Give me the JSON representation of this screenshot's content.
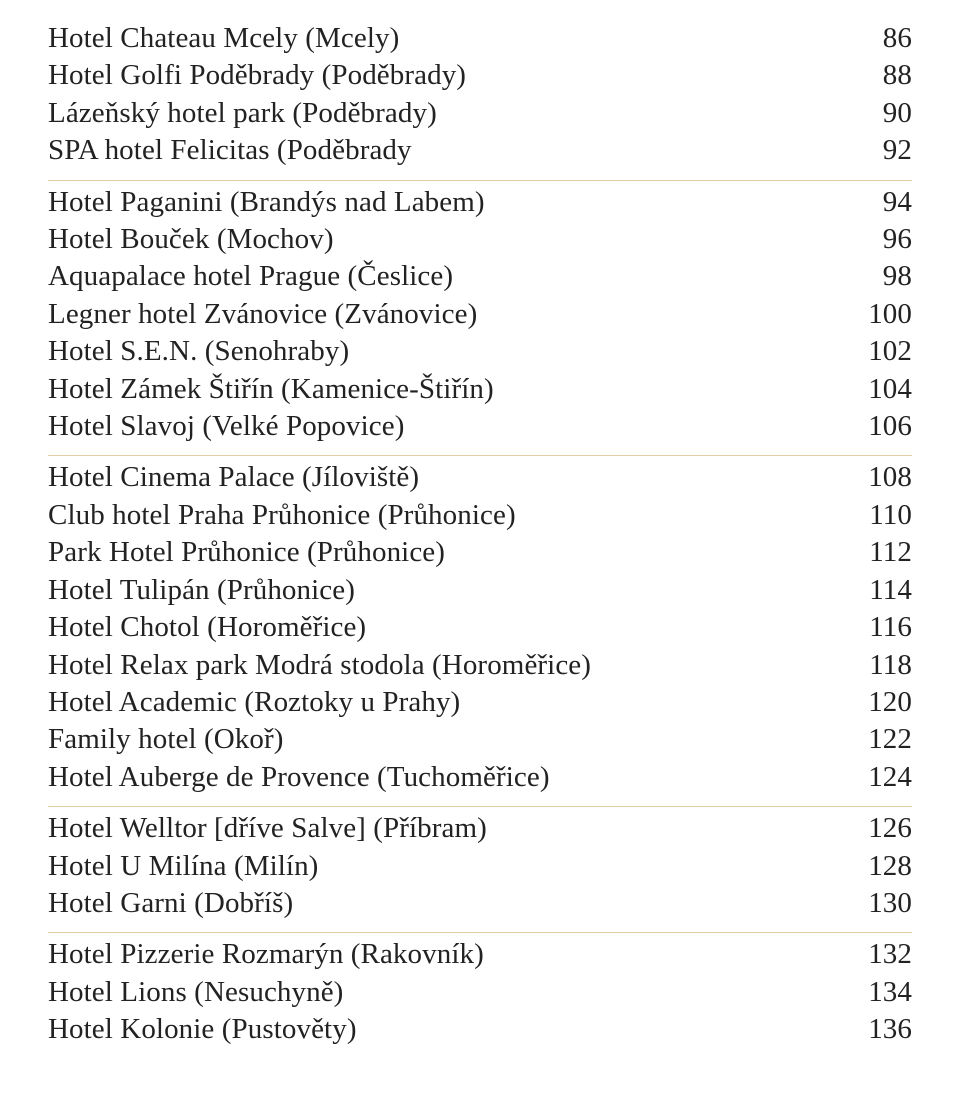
{
  "typography": {
    "font_family": "Palatino Linotype, Book Antiqua, Palatino, Georgia, serif",
    "font_size_pt": 22,
    "text_color": "#222222",
    "background_color": "#ffffff"
  },
  "divider_color": "#e2cfa3",
  "sections": [
    {
      "entries": [
        {
          "name": "Hotel Chateau Mcely (Mcely)",
          "page": "86"
        },
        {
          "name": "Hotel Golfi Poděbrady (Poděbrady)",
          "page": "88"
        },
        {
          "name": "Lázeňský hotel park (Poděbrady)",
          "page": "90"
        },
        {
          "name": "SPA hotel Felicitas (Poděbrady",
          "page": "92"
        }
      ]
    },
    {
      "entries": [
        {
          "name": "Hotel Paganini (Brandýs nad Labem)",
          "page": "94"
        },
        {
          "name": "Hotel Bouček (Mochov)",
          "page": "96"
        },
        {
          "name": "Aquapalace hotel Prague (Česlice)",
          "page": "98"
        },
        {
          "name": "Legner hotel Zvánovice (Zvánovice)",
          "page": "100"
        },
        {
          "name": "Hotel S.E.N. (Senohraby)",
          "page": "102"
        },
        {
          "name": "Hotel Zámek Štiřín (Kamenice-Štiřín)",
          "page": "104"
        },
        {
          "name": "Hotel Slavoj (Velké Popovice)",
          "page": "106"
        }
      ]
    },
    {
      "entries": [
        {
          "name": "Hotel Cinema Palace (Jíloviště)",
          "page": "108"
        },
        {
          "name": "Club hotel Praha Průhonice (Průhonice)",
          "page": "110"
        },
        {
          "name": "Park Hotel Průhonice (Průhonice)",
          "page": "112"
        },
        {
          "name": "Hotel Tulipán (Průhonice)",
          "page": "114"
        },
        {
          "name": "Hotel Chotol (Horoměřice)",
          "page": "116"
        },
        {
          "name": "Hotel Relax park Modrá stodola (Horoměřice)",
          "page": "118"
        },
        {
          "name": "Hotel Academic (Roztoky u Prahy)",
          "page": "120"
        },
        {
          "name": "Family hotel (Okoř)",
          "page": "122"
        },
        {
          "name": "Hotel Auberge de Provence (Tuchoměřice)",
          "page": "124"
        }
      ]
    },
    {
      "entries": [
        {
          "name": "Hotel Welltor [dříve Salve] (Příbram)",
          "page": "126"
        },
        {
          "name": "Hotel U Milína (Milín)",
          "page": "128"
        },
        {
          "name": "Hotel Garni (Dobříš)",
          "page": "130"
        }
      ]
    },
    {
      "entries": [
        {
          "name": "Hotel Pizzerie Rozmarýn (Rakovník)",
          "page": "132"
        },
        {
          "name": "Hotel Lions (Nesuchyně)",
          "page": "134"
        },
        {
          "name": "Hotel Kolonie (Pustověty)",
          "page": "136"
        }
      ]
    }
  ]
}
